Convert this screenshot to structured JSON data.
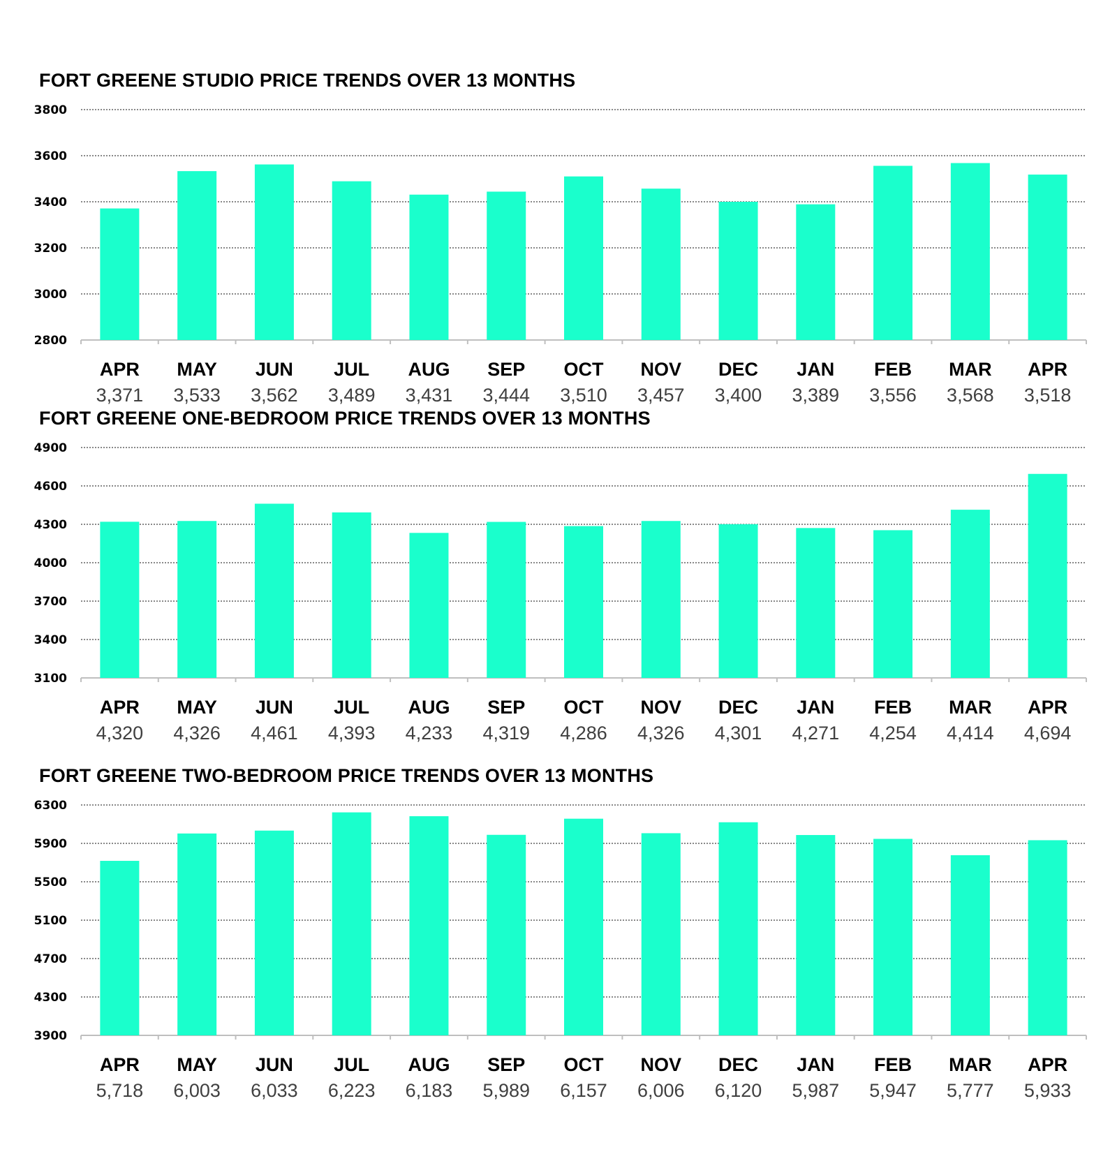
{
  "colors": {
    "bar": "#1affcc",
    "grid": "#404040",
    "axis": "#bfbfbf",
    "value_text": "#404040"
  },
  "chart_data": [
    {
      "type": "bar",
      "title": "FORT GREENE STUDIO PRICE TRENDS OVER 13 MONTHS",
      "categories": [
        "APR",
        "MAY",
        "JUN",
        "JUL",
        "AUG",
        "SEP",
        "OCT",
        "NOV",
        "DEC",
        "JAN",
        "FEB",
        "MAR",
        "APR"
      ],
      "values": [
        3371,
        3533,
        3562,
        3489,
        3431,
        3444,
        3510,
        3457,
        3400,
        3389,
        3556,
        3568,
        3518
      ],
      "value_labels": [
        "3,371",
        "3,533",
        "3,562",
        "3,489",
        "3,431",
        "3,444",
        "3,510",
        "3,457",
        "3,400",
        "3,389",
        "3,556",
        "3,568",
        "3,518"
      ],
      "yticks": [
        2800,
        3000,
        3200,
        3400,
        3600,
        3800
      ],
      "ylim": [
        2800,
        3800
      ],
      "grid": true,
      "xlabel": "",
      "ylabel": ""
    },
    {
      "type": "bar",
      "title": "FORT GREENE ONE-BEDROOM PRICE TRENDS OVER 13 MONTHS",
      "categories": [
        "APR",
        "MAY",
        "JUN",
        "JUL",
        "AUG",
        "SEP",
        "OCT",
        "NOV",
        "DEC",
        "JAN",
        "FEB",
        "MAR",
        "APR"
      ],
      "values": [
        4320,
        4326,
        4461,
        4393,
        4233,
        4319,
        4286,
        4326,
        4301,
        4271,
        4254,
        4414,
        4694
      ],
      "value_labels": [
        "4,320",
        "4,326",
        "4,461",
        "4,393",
        "4,233",
        "4,319",
        "4,286",
        "4,326",
        "4,301",
        "4,271",
        "4,254",
        "4,414",
        "4,694"
      ],
      "yticks": [
        3100,
        3400,
        3700,
        4000,
        4300,
        4600,
        4900
      ],
      "ylim": [
        3100,
        4900
      ],
      "grid": true,
      "xlabel": "",
      "ylabel": ""
    },
    {
      "type": "bar",
      "title": "FORT GREENE TWO-BEDROOM PRICE TRENDS OVER 13 MONTHS",
      "categories": [
        "APR",
        "MAY",
        "JUN",
        "JUL",
        "AUG",
        "SEP",
        "OCT",
        "NOV",
        "DEC",
        "JAN",
        "FEB",
        "MAR",
        "APR"
      ],
      "values": [
        5718,
        6003,
        6033,
        6223,
        6183,
        5989,
        6157,
        6006,
        6120,
        5987,
        5947,
        5777,
        5933
      ],
      "value_labels": [
        "5,718",
        "6,003",
        "6,033",
        "6,223",
        "6,183",
        "5,989",
        "6,157",
        "6,006",
        "6,120",
        "5,987",
        "5,947",
        "5,777",
        "5,933"
      ],
      "yticks": [
        3900,
        4300,
        4700,
        5100,
        5500,
        5900,
        6300
      ],
      "ylim": [
        3900,
        6300
      ],
      "grid": true,
      "xlabel": "",
      "ylabel": ""
    }
  ]
}
